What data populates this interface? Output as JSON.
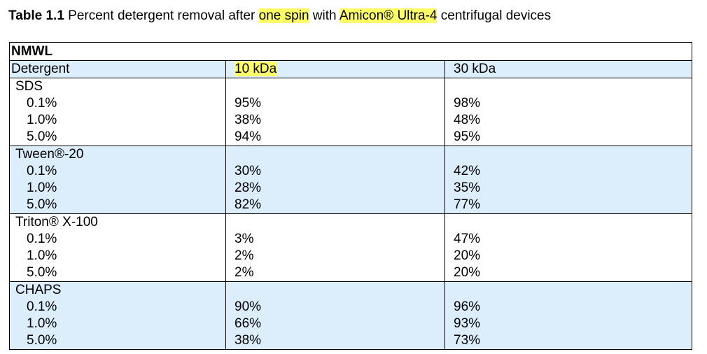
{
  "caption": {
    "number": "Table 1.1",
    "text_before": " Percent detergent removal after ",
    "highlight1": "one spin",
    "text_middle": " with ",
    "highlight2": "Amicon® Ultra-4",
    "text_after": " centrifugal devices"
  },
  "table": {
    "group_header": "NMWL",
    "columns": [
      "Detergent",
      "10 kDa",
      "30 kDa"
    ],
    "groups": [
      {
        "name": "SDS",
        "rows": [
          {
            "conc": "0.1%",
            "kda10": "95%",
            "kda30": "98%"
          },
          {
            "conc": "1.0%",
            "kda10": "38%",
            "kda30": "48%"
          },
          {
            "conc": "5.0%",
            "kda10": "94%",
            "kda30": "95%"
          }
        ]
      },
      {
        "name": "Tween®-20",
        "rows": [
          {
            "conc": "0.1%",
            "kda10": "30%",
            "kda30": "42%"
          },
          {
            "conc": "1.0%",
            "kda10": "28%",
            "kda30": "35%"
          },
          {
            "conc": "5.0%",
            "kda10": "82%",
            "kda30": "77%"
          }
        ]
      },
      {
        "name": "Triton® X-100",
        "rows": [
          {
            "conc": "0.1%",
            "kda10": "3%",
            "kda30": "47%"
          },
          {
            "conc": "1.0%",
            "kda10": "2%",
            "kda30": "20%"
          },
          {
            "conc": "5.0%",
            "kda10": "2%",
            "kda30": "20%"
          }
        ]
      },
      {
        "name": "CHAPS",
        "rows": [
          {
            "conc": "0.1%",
            "kda10": "90%",
            "kda30": "96%"
          },
          {
            "conc": "1.0%",
            "kda10": "66%",
            "kda30": "93%"
          },
          {
            "conc": "5.0%",
            "kda10": "38%",
            "kda30": "73%"
          }
        ]
      }
    ]
  },
  "colors": {
    "highlight": "#ffff66",
    "shade": "#dceefb"
  }
}
